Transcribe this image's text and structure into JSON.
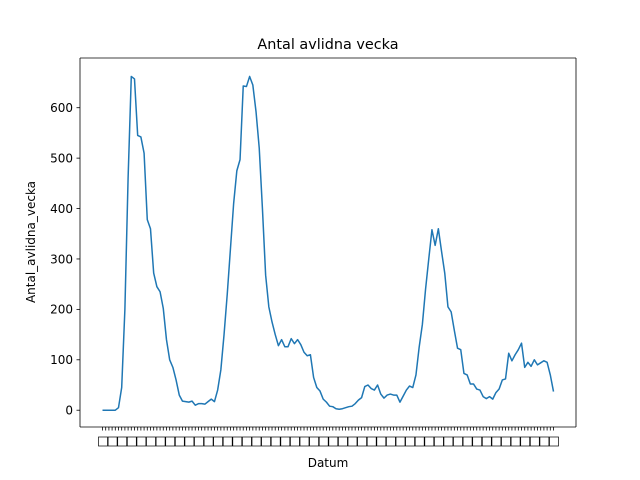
{
  "chart_data": {
    "type": "line",
    "title": "Antal avlidna vecka",
    "xlabel": "Datum",
    "ylabel": "Antal_avlidna_vecka",
    "ylim": [
      -33.3,
      698.6
    ],
    "yticks": [
      0,
      100,
      200,
      300,
      400,
      500,
      600
    ],
    "grid": false,
    "legend": "none",
    "line_color": "#1f77b4",
    "series": [
      {
        "values": [
          0,
          0,
          0,
          0,
          0,
          5,
          45,
          200,
          460,
          662,
          657,
          545,
          542,
          510,
          378,
          360,
          272,
          245,
          235,
          202,
          140,
          100,
          85,
          60,
          30,
          18,
          17,
          16,
          18,
          10,
          13,
          13,
          12,
          17,
          22,
          17,
          40,
          80,
          150,
          230,
          320,
          410,
          475,
          497,
          643,
          642,
          662,
          645,
          592,
          520,
          400,
          268,
          205,
          175,
          150,
          128,
          140,
          126,
          126,
          142,
          132,
          140,
          130,
          115,
          108,
          110,
          65,
          45,
          38,
          22,
          16,
          8,
          7,
          3,
          2,
          3,
          5,
          7,
          8,
          13,
          20,
          25,
          47,
          50,
          43,
          40,
          50,
          32,
          24,
          30,
          32,
          30,
          30,
          16,
          28,
          40,
          48,
          45,
          70,
          125,
          170,
          240,
          300,
          358,
          327,
          360,
          315,
          272,
          205,
          195,
          158,
          123,
          120,
          73,
          70,
          52,
          52,
          42,
          40,
          27,
          23,
          27,
          22,
          35,
          42,
          60,
          62,
          113,
          98,
          110,
          120,
          133,
          85,
          95,
          87,
          100,
          90,
          94,
          98,
          95,
          70,
          37
        ]
      }
    ]
  }
}
